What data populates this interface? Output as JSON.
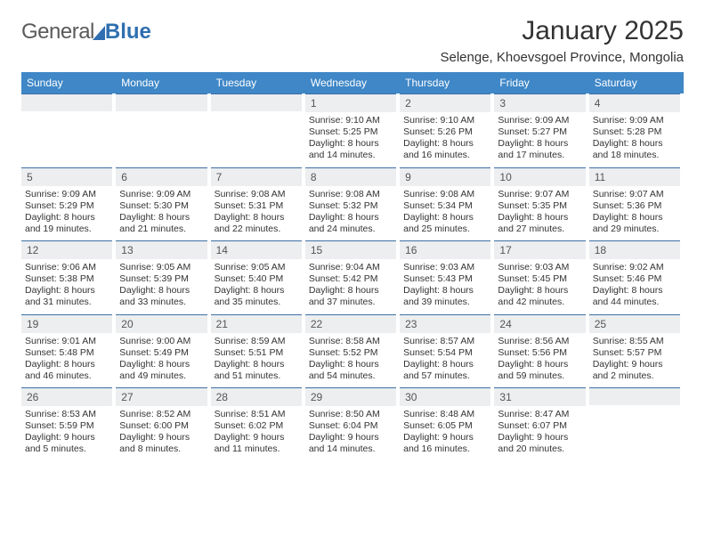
{
  "brand": {
    "part1": "General",
    "part2": "Blue"
  },
  "title": "January 2025",
  "location": "Selenge, Khoevsgoel Province, Mongolia",
  "colors": {
    "header_bg": "#3f87c7",
    "header_text": "#ffffff",
    "daynum_bg": "#eceef0",
    "daynum_border": "#3f6fa5",
    "text": "#333333",
    "brand_gray": "#5a5a5a",
    "brand_blue": "#2f6fb0"
  },
  "day_names": [
    "Sunday",
    "Monday",
    "Tuesday",
    "Wednesday",
    "Thursday",
    "Friday",
    "Saturday"
  ],
  "weeks": [
    [
      null,
      null,
      null,
      {
        "n": "1",
        "sr": "9:10 AM",
        "ss": "5:25 PM",
        "dl": "8 hours and 14 minutes."
      },
      {
        "n": "2",
        "sr": "9:10 AM",
        "ss": "5:26 PM",
        "dl": "8 hours and 16 minutes."
      },
      {
        "n": "3",
        "sr": "9:09 AM",
        "ss": "5:27 PM",
        "dl": "8 hours and 17 minutes."
      },
      {
        "n": "4",
        "sr": "9:09 AM",
        "ss": "5:28 PM",
        "dl": "8 hours and 18 minutes."
      }
    ],
    [
      {
        "n": "5",
        "sr": "9:09 AM",
        "ss": "5:29 PM",
        "dl": "8 hours and 19 minutes."
      },
      {
        "n": "6",
        "sr": "9:09 AM",
        "ss": "5:30 PM",
        "dl": "8 hours and 21 minutes."
      },
      {
        "n": "7",
        "sr": "9:08 AM",
        "ss": "5:31 PM",
        "dl": "8 hours and 22 minutes."
      },
      {
        "n": "8",
        "sr": "9:08 AM",
        "ss": "5:32 PM",
        "dl": "8 hours and 24 minutes."
      },
      {
        "n": "9",
        "sr": "9:08 AM",
        "ss": "5:34 PM",
        "dl": "8 hours and 25 minutes."
      },
      {
        "n": "10",
        "sr": "9:07 AM",
        "ss": "5:35 PM",
        "dl": "8 hours and 27 minutes."
      },
      {
        "n": "11",
        "sr": "9:07 AM",
        "ss": "5:36 PM",
        "dl": "8 hours and 29 minutes."
      }
    ],
    [
      {
        "n": "12",
        "sr": "9:06 AM",
        "ss": "5:38 PM",
        "dl": "8 hours and 31 minutes."
      },
      {
        "n": "13",
        "sr": "9:05 AM",
        "ss": "5:39 PM",
        "dl": "8 hours and 33 minutes."
      },
      {
        "n": "14",
        "sr": "9:05 AM",
        "ss": "5:40 PM",
        "dl": "8 hours and 35 minutes."
      },
      {
        "n": "15",
        "sr": "9:04 AM",
        "ss": "5:42 PM",
        "dl": "8 hours and 37 minutes."
      },
      {
        "n": "16",
        "sr": "9:03 AM",
        "ss": "5:43 PM",
        "dl": "8 hours and 39 minutes."
      },
      {
        "n": "17",
        "sr": "9:03 AM",
        "ss": "5:45 PM",
        "dl": "8 hours and 42 minutes."
      },
      {
        "n": "18",
        "sr": "9:02 AM",
        "ss": "5:46 PM",
        "dl": "8 hours and 44 minutes."
      }
    ],
    [
      {
        "n": "19",
        "sr": "9:01 AM",
        "ss": "5:48 PM",
        "dl": "8 hours and 46 minutes."
      },
      {
        "n": "20",
        "sr": "9:00 AM",
        "ss": "5:49 PM",
        "dl": "8 hours and 49 minutes."
      },
      {
        "n": "21",
        "sr": "8:59 AM",
        "ss": "5:51 PM",
        "dl": "8 hours and 51 minutes."
      },
      {
        "n": "22",
        "sr": "8:58 AM",
        "ss": "5:52 PM",
        "dl": "8 hours and 54 minutes."
      },
      {
        "n": "23",
        "sr": "8:57 AM",
        "ss": "5:54 PM",
        "dl": "8 hours and 57 minutes."
      },
      {
        "n": "24",
        "sr": "8:56 AM",
        "ss": "5:56 PM",
        "dl": "8 hours and 59 minutes."
      },
      {
        "n": "25",
        "sr": "8:55 AM",
        "ss": "5:57 PM",
        "dl": "9 hours and 2 minutes."
      }
    ],
    [
      {
        "n": "26",
        "sr": "8:53 AM",
        "ss": "5:59 PM",
        "dl": "9 hours and 5 minutes."
      },
      {
        "n": "27",
        "sr": "8:52 AM",
        "ss": "6:00 PM",
        "dl": "9 hours and 8 minutes."
      },
      {
        "n": "28",
        "sr": "8:51 AM",
        "ss": "6:02 PM",
        "dl": "9 hours and 11 minutes."
      },
      {
        "n": "29",
        "sr": "8:50 AM",
        "ss": "6:04 PM",
        "dl": "9 hours and 14 minutes."
      },
      {
        "n": "30",
        "sr": "8:48 AM",
        "ss": "6:05 PM",
        "dl": "9 hours and 16 minutes."
      },
      {
        "n": "31",
        "sr": "8:47 AM",
        "ss": "6:07 PM",
        "dl": "9 hours and 20 minutes."
      },
      null
    ]
  ],
  "labels": {
    "sunrise": "Sunrise:",
    "sunset": "Sunset:",
    "daylight": "Daylight:"
  }
}
